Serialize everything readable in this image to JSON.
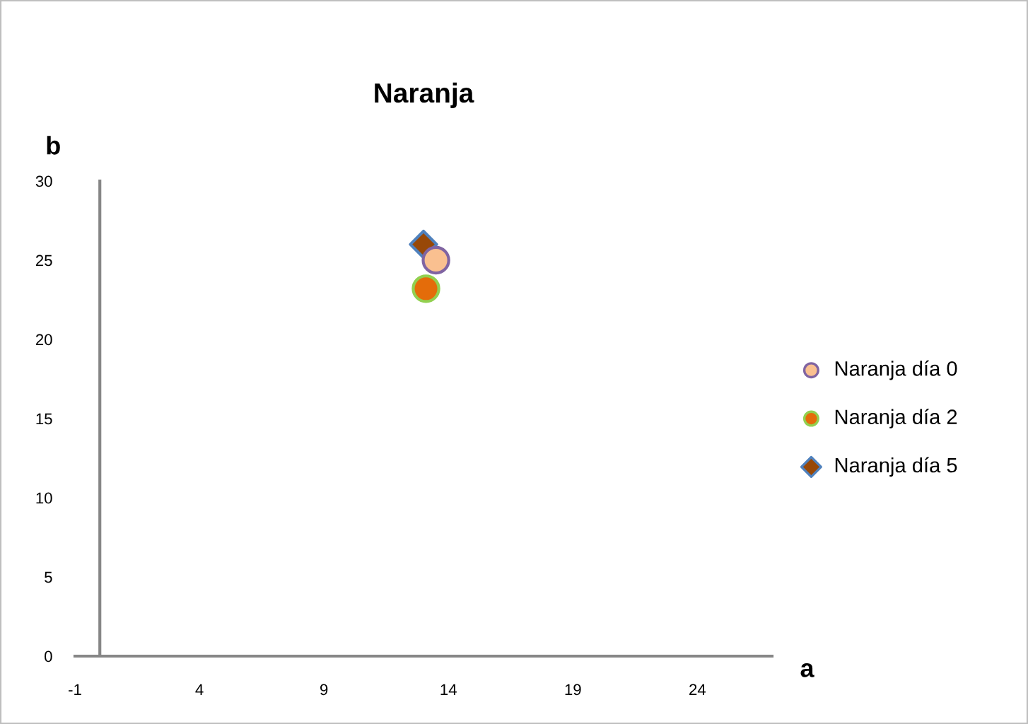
{
  "chart_data": {
    "type": "scatter",
    "title": "Naranja",
    "xlabel": "a",
    "ylabel": "b",
    "xlim": [
      -1,
      27
    ],
    "xticks": [
      -1,
      4,
      9,
      14,
      19,
      24
    ],
    "ylim": [
      0,
      30
    ],
    "yticks": [
      0,
      5,
      10,
      15,
      20,
      25,
      30
    ],
    "grid": false,
    "legend": "right",
    "series": [
      {
        "name": "Naranja día 0",
        "color": "#fac090",
        "marker": "circle",
        "x": [
          13.5
        ],
        "values": [
          25.0
        ]
      },
      {
        "name": "Naranja día 2",
        "color": "#e46c0a",
        "marker": "circle",
        "x": [
          13.1
        ],
        "values": [
          23.2
        ]
      },
      {
        "name": "Naranja día 5",
        "color": "#984807",
        "marker": "diamond",
        "x": [
          13.0
        ],
        "values": [
          26.0
        ]
      }
    ]
  }
}
